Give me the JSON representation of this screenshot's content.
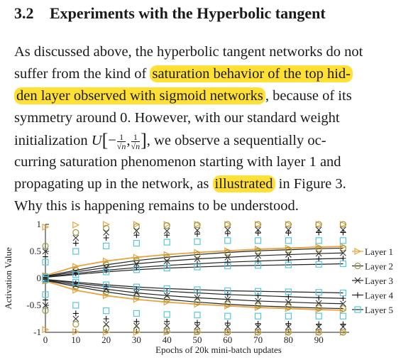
{
  "section": {
    "number": "3.2",
    "title": "Experiments with the Hyperbolic tangent"
  },
  "paragraph": {
    "l1": "As discussed above, the hyperbolic tangent networks do not",
    "l2a": "suffer from the kind of ",
    "l2b": "saturation behavior of the top hid-",
    "l3a": "den layer observed with sigmoid networks",
    "l3b": ", because of its",
    "l4": "symmetry around 0.  However, with our standard weight",
    "l5a": "initialization ",
    "l5_u": "U",
    "l5_neg": "−",
    "l5_frac_num": "1",
    "l5_frac_den": "√n",
    "l5_comma": ",",
    "l5b": ", we observe a sequentially oc-",
    "l6": "curring saturation phenomenon starting with layer 1 and",
    "l7a": "propagating up in the network, as ",
    "l7b": "illustrated",
    "l7c": " in Figure 3.",
    "l8": "Why this is happening remains to be understood."
  },
  "colors": {
    "highlight": "#ffe033",
    "layer1": "#e8a33c",
    "layer2": "#9a9a48",
    "layer3": "#333333",
    "layer4": "#111111",
    "layer5": "#56c7dc"
  },
  "chart_data": {
    "type": "line",
    "xlabel": "Epochs of 20k mini-batch updates",
    "ylabel": "Activation Value",
    "xlim": [
      0,
      100
    ],
    "ylim": [
      -1,
      1
    ],
    "x_ticks": [
      0,
      10,
      20,
      30,
      40,
      50,
      60,
      70,
      80,
      90
    ],
    "y_ticks": [
      -1,
      -0.5,
      0,
      0.5,
      1
    ],
    "y_tick_labels": [
      "-1",
      "-0.5",
      "0",
      "0.5",
      "1"
    ],
    "legend_position": "right",
    "legend_markers": [
      "triangle-right",
      "circle",
      "x",
      "plus",
      "square"
    ],
    "series": [
      {
        "name": "Layer 1",
        "x": [
          0,
          10,
          20,
          30,
          40,
          50,
          60,
          70,
          80,
          90,
          98
        ],
        "mean": [
          0.05,
          0.22,
          0.32,
          0.39,
          0.44,
          0.48,
          0.51,
          0.54,
          0.56,
          0.58,
          0.59
        ],
        "std_upper": [
          0.95,
          0.99,
          1.0,
          1.0,
          1.0,
          1.0,
          1.0,
          1.0,
          1.0,
          1.0,
          1.0
        ]
      },
      {
        "name": "Layer 2",
        "x": [
          0,
          10,
          20,
          30,
          40,
          50,
          60,
          70,
          80,
          90,
          98
        ],
        "mean": [
          0.04,
          0.15,
          0.25,
          0.33,
          0.39,
          0.44,
          0.48,
          0.51,
          0.53,
          0.55,
          0.56
        ],
        "std_upper": [
          0.6,
          0.85,
          0.93,
          0.96,
          0.98,
          0.99,
          1.0,
          1.0,
          1.0,
          1.0,
          1.0
        ]
      },
      {
        "name": "Layer 3",
        "x": [
          0,
          10,
          20,
          30,
          40,
          50,
          60,
          70,
          80,
          90,
          98
        ],
        "mean": [
          0.03,
          0.12,
          0.2,
          0.27,
          0.32,
          0.36,
          0.39,
          0.42,
          0.44,
          0.46,
          0.47
        ],
        "std_upper": [
          0.5,
          0.75,
          0.85,
          0.88,
          0.88,
          0.89,
          0.9,
          0.9,
          0.9,
          0.9,
          0.9
        ]
      },
      {
        "name": "Layer 4",
        "x": [
          0,
          10,
          20,
          30,
          40,
          50,
          60,
          70,
          80,
          90,
          98
        ],
        "mean": [
          0.02,
          0.09,
          0.15,
          0.2,
          0.24,
          0.27,
          0.3,
          0.32,
          0.34,
          0.36,
          0.37
        ],
        "std_upper": [
          0.4,
          0.65,
          0.75,
          0.8,
          0.8,
          0.82,
          0.83,
          0.84,
          0.84,
          0.85,
          0.85
        ]
      },
      {
        "name": "Layer 5",
        "x": [
          0,
          10,
          20,
          30,
          40,
          50,
          60,
          70,
          80,
          90,
          98
        ],
        "mean": [
          0.02,
          0.07,
          0.12,
          0.16,
          0.19,
          0.21,
          0.23,
          0.24,
          0.25,
          0.26,
          0.27
        ],
        "std_upper": [
          0.3,
          0.5,
          0.6,
          0.65,
          0.67,
          0.68,
          0.7,
          0.7,
          0.7,
          0.7,
          0.7
        ]
      }
    ]
  }
}
